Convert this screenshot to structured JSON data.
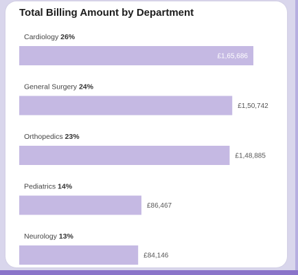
{
  "chart_data": {
    "type": "bar",
    "orientation": "horizontal",
    "title": "Total Billing Amount by Department",
    "categories": [
      "Cardiology",
      "General Surgery",
      "Orthopedics",
      "Pediatrics",
      "Neurology"
    ],
    "percent_labels": [
      "26%",
      "24%",
      "23%",
      "14%",
      "13%"
    ],
    "values": [
      165686,
      150742,
      148885,
      86467,
      84146
    ],
    "value_labels": [
      "£1,65,686",
      "£1,50,742",
      "£1,48,885",
      "£86,467",
      "£84,146"
    ],
    "xlim": [
      0,
      165686
    ],
    "grid": false,
    "legend": "none"
  },
  "colors": {
    "bar": "#c5b9e3",
    "inside_label": "#ffffff",
    "outside_label": "#555555"
  }
}
